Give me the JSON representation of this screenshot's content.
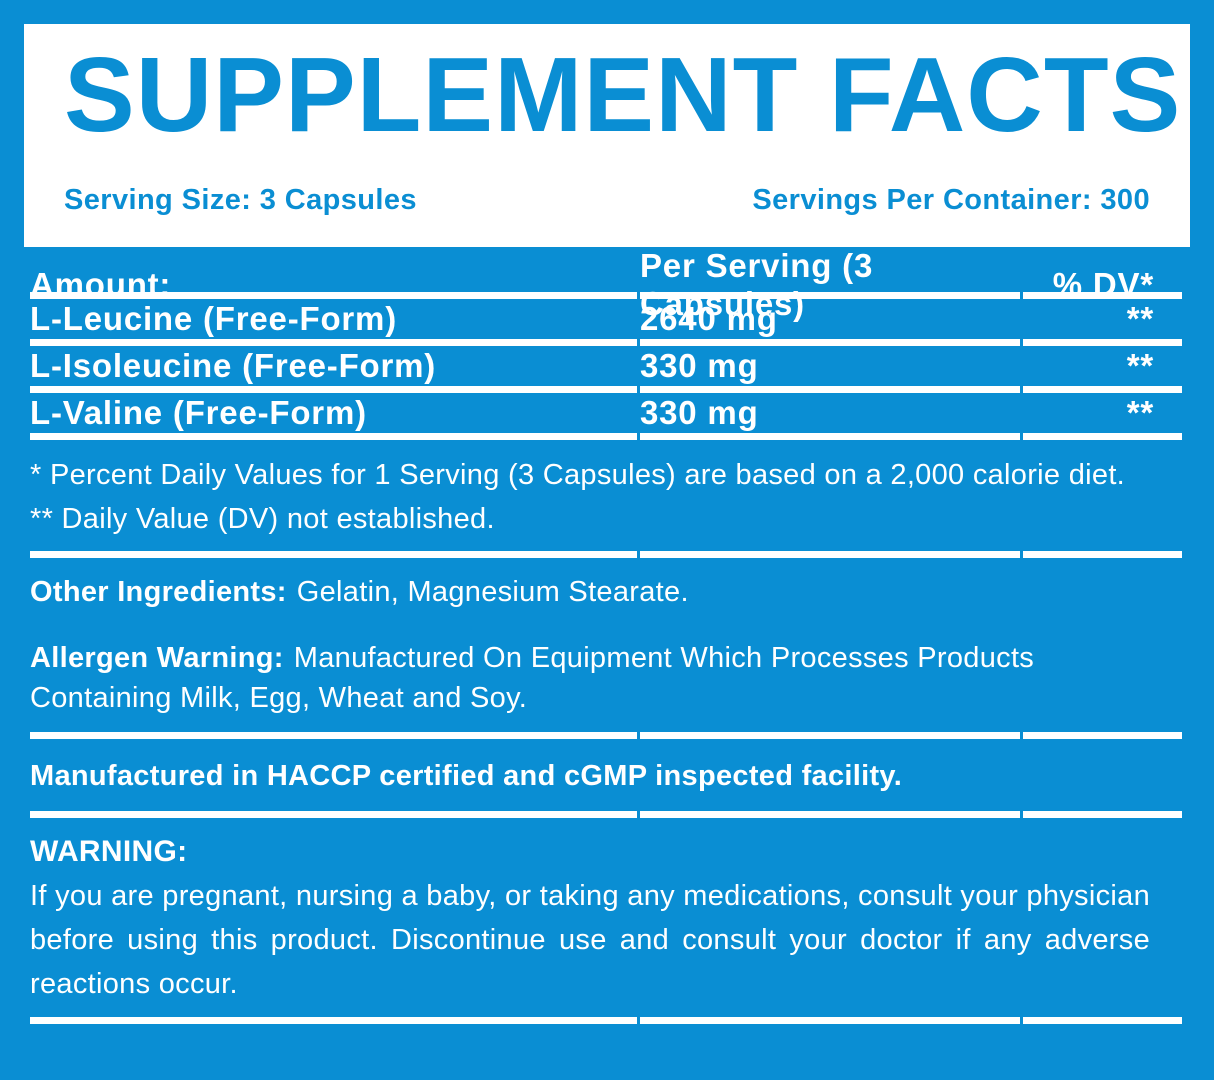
{
  "colors": {
    "accent_blue": "#0a8ed3",
    "text_on_blue": "#ffffff",
    "panel_white": "#ffffff"
  },
  "title": "SUPPLEMENT FACTS",
  "serving": {
    "size_label": "Serving Size: 3 Capsules",
    "per_container_label": "Servings Per Container: 300"
  },
  "table": {
    "headers": [
      "Amount:",
      "Per Serving (3 Capsules)",
      "% DV*"
    ],
    "rows": [
      {
        "name": "L-Leucine (Free-Form)",
        "amount": "2640 mg",
        "dv": "**"
      },
      {
        "name": "L-Isoleucine (Free-Form)",
        "amount": "330 mg",
        "dv": "**"
      },
      {
        "name": "L-Valine (Free-Form)",
        "amount": "330 mg",
        "dv": "**"
      }
    ]
  },
  "footnotes": {
    "daily_value": "* Percent Daily Values for 1 Serving (3 Capsules) are based on a 2,000 calorie diet.",
    "not_established": "** Daily Value (DV) not established."
  },
  "other_ingredients": {
    "label": "Other Ingredients:",
    "value": "Gelatin, Magnesium Stearate."
  },
  "allergen": {
    "label": "Allergen Warning:",
    "value": "Manufactured On Equipment Which Processes Products Containing Milk, Egg, Wheat and Soy."
  },
  "manufactured_note": "Manufactured in HACCP certified and cGMP inspected facility.",
  "warning": {
    "label": "WARNING:",
    "body": "If you are pregnant, nursing a baby, or taking any medications, consult your physician before using this product. Discontinue use and consult your doctor if any adverse reactions occur."
  }
}
